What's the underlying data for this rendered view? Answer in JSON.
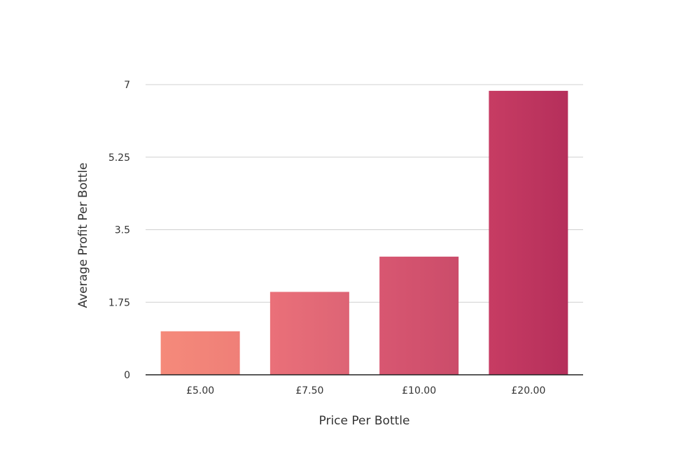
{
  "chart_data": {
    "type": "bar",
    "categories": [
      "£5.00",
      "£7.50",
      "£10.00",
      "£20.00"
    ],
    "values": [
      1.05,
      2.0,
      2.85,
      6.85
    ],
    "xlabel": "Price Per Bottle",
    "ylabel": "Average Profit Per Bottle",
    "ylim": [
      0,
      7
    ],
    "yticks": [
      0,
      1.75,
      3.5,
      5.25,
      7
    ],
    "ytick_labels": [
      "0",
      "1.75",
      "3.5",
      "5.25",
      "7"
    ],
    "grid": true,
    "bar_colors": [
      [
        "#f58a7a",
        "#ef7f78"
      ],
      [
        "#ea7079",
        "#dd6475"
      ],
      [
        "#d85771",
        "#cb4c6a"
      ],
      [
        "#c73c63",
        "#b52f5b"
      ]
    ]
  }
}
